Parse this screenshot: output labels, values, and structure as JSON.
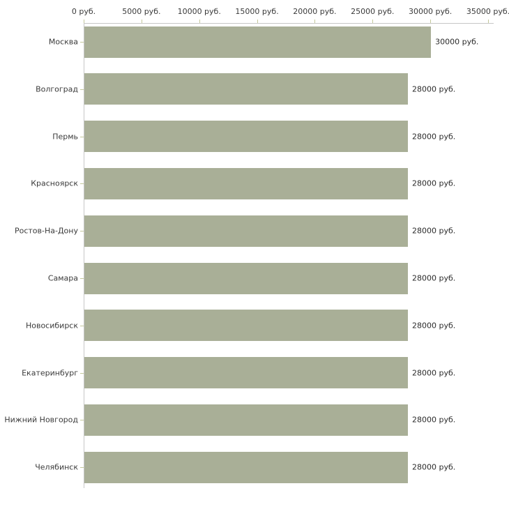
{
  "chart_data": {
    "type": "bar",
    "orientation": "horizontal",
    "title": "",
    "xlabel": "",
    "ylabel": "",
    "unit": "руб.",
    "categories": [
      "Москва",
      "Волгоград",
      "Пермь",
      "Красноярск",
      "Ростов-На-Дону",
      "Самара",
      "Новосибирск",
      "Екатеринбург",
      "Нижний Новгород",
      "Челябинск"
    ],
    "values": [
      30000,
      28000,
      28000,
      28000,
      28000,
      28000,
      28000,
      28000,
      28000,
      28000
    ],
    "value_labels": [
      "30000 руб.",
      "28000 руб.",
      "28000 руб.",
      "28000 руб.",
      "28000 руб.",
      "28000 руб.",
      "28000 руб.",
      "28000 руб.",
      "28000 руб.",
      "28000 руб."
    ],
    "x_ticks": [
      0,
      5000,
      10000,
      15000,
      20000,
      25000,
      30000,
      35000
    ],
    "x_tick_labels": [
      "0 руб.",
      "5000 руб.",
      "10000 руб.",
      "15000 руб.",
      "20000 руб.",
      "25000 руб.",
      "30000 руб.",
      "35000 руб."
    ],
    "xlim": [
      0,
      35000
    ],
    "grid": false,
    "legend": "none",
    "colors": {
      "bar": "#a9af97",
      "axis_line": "#c6c6c6",
      "tick_mark": "#c4c89b",
      "text": "#3a3a3a",
      "background": "#ffffff"
    }
  }
}
